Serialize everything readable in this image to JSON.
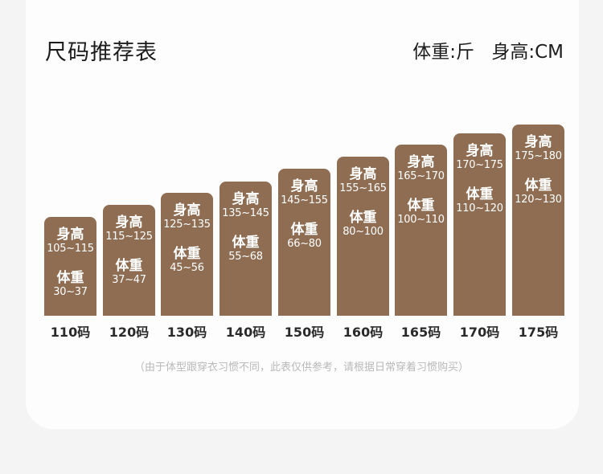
{
  "title": "尺码推荐表",
  "units": {
    "weight": "体重:斤",
    "height": "身高:CM"
  },
  "height_label": "身高",
  "weight_label": "体重",
  "bars": [
    {
      "size": "110码",
      "height": "105~115",
      "weight": "30~37"
    },
    {
      "size": "120码",
      "height": "115~125",
      "weight": "37~47"
    },
    {
      "size": "130码",
      "height": "125~135",
      "weight": "45~56"
    },
    {
      "size": "140码",
      "height": "135~145",
      "weight": "55~68"
    },
    {
      "size": "150码",
      "height": "145~155",
      "weight": "66~80"
    },
    {
      "size": "160码",
      "height": "155~165",
      "weight": "80~100"
    },
    {
      "size": "165码",
      "height": "165~170",
      "weight": "100~110"
    },
    {
      "size": "170码",
      "height": "170~175",
      "weight": "110~120"
    },
    {
      "size": "175码",
      "height": "175~180",
      "weight": "120~130"
    }
  ],
  "note": "（由于体型跟穿衣习惯不同，此表仅供参考，请根据日常穿着习惯购买）",
  "colors": {
    "bar": "#8e6d52",
    "background": "#f4f4f4",
    "card": "#fdfdfd"
  }
}
